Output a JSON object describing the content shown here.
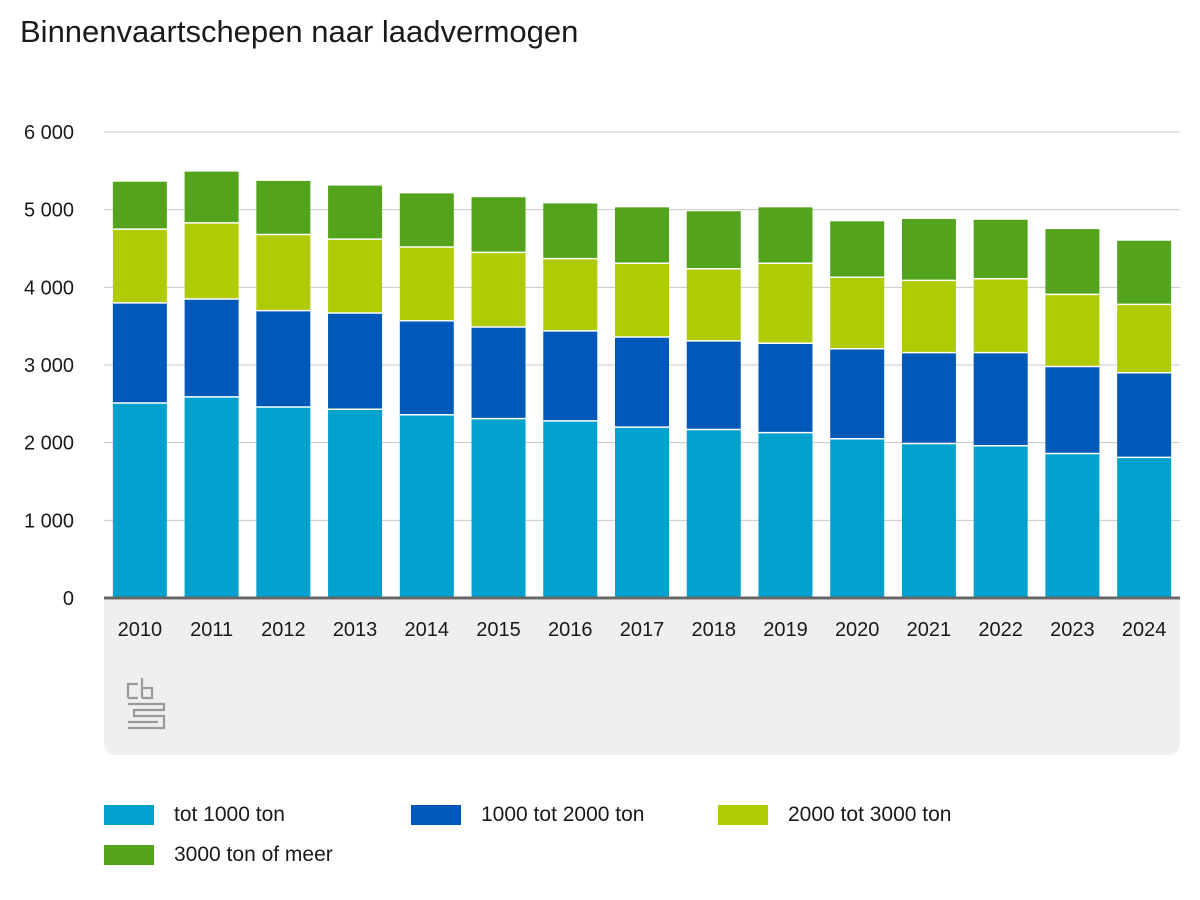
{
  "title": "Binnenvaartschepen naar laadvermogen",
  "colors": {
    "tot_1000": "#00a1cd",
    "1000_2000": "#0058b8",
    "2000_3000": "#afcb05",
    "3000_plus": "#53a31d",
    "grid": "#c8c8c8",
    "axis": "#666666",
    "panel": "#efefef"
  },
  "logo_icon": "cbs-logo",
  "chart_data": {
    "type": "bar",
    "stacked": true,
    "title": "Binnenvaartschepen naar laadvermogen",
    "xlabel": "",
    "ylabel": "",
    "ylim": [
      0,
      6000
    ],
    "yticks": [
      0,
      1000,
      2000,
      3000,
      4000,
      5000,
      6000
    ],
    "ytick_labels": [
      "0",
      "1 000",
      "2 000",
      "3 000",
      "4 000",
      "5 000",
      "6 000"
    ],
    "grid": true,
    "legend_position": "bottom",
    "categories": [
      "2010",
      "2011",
      "2012",
      "2013",
      "2014",
      "2015",
      "2016",
      "2017",
      "2018",
      "2019",
      "2020",
      "2021",
      "2022",
      "2023",
      "2024"
    ],
    "series": [
      {
        "name": "tot 1000 ton",
        "color": "#00a1cd",
        "values": [
          2510,
          2590,
          2460,
          2430,
          2360,
          2310,
          2280,
          2200,
          2170,
          2130,
          2050,
          1990,
          1960,
          1860,
          1810
        ]
      },
      {
        "name": "1000 tot 2000 ton",
        "color": "#0058b8",
        "values": [
          1290,
          1260,
          1240,
          1240,
          1210,
          1180,
          1160,
          1160,
          1140,
          1150,
          1160,
          1170,
          1200,
          1120,
          1090
        ]
      },
      {
        "name": "2000 tot 3000 ton",
        "color": "#afcb05",
        "values": [
          950,
          980,
          980,
          950,
          950,
          960,
          930,
          950,
          930,
          1030,
          920,
          930,
          950,
          930,
          880
        ]
      },
      {
        "name": "3000 ton of meer",
        "color": "#53a31d",
        "values": [
          610,
          660,
          690,
          690,
          690,
          710,
          710,
          720,
          740,
          720,
          720,
          790,
          760,
          840,
          820
        ]
      }
    ]
  }
}
